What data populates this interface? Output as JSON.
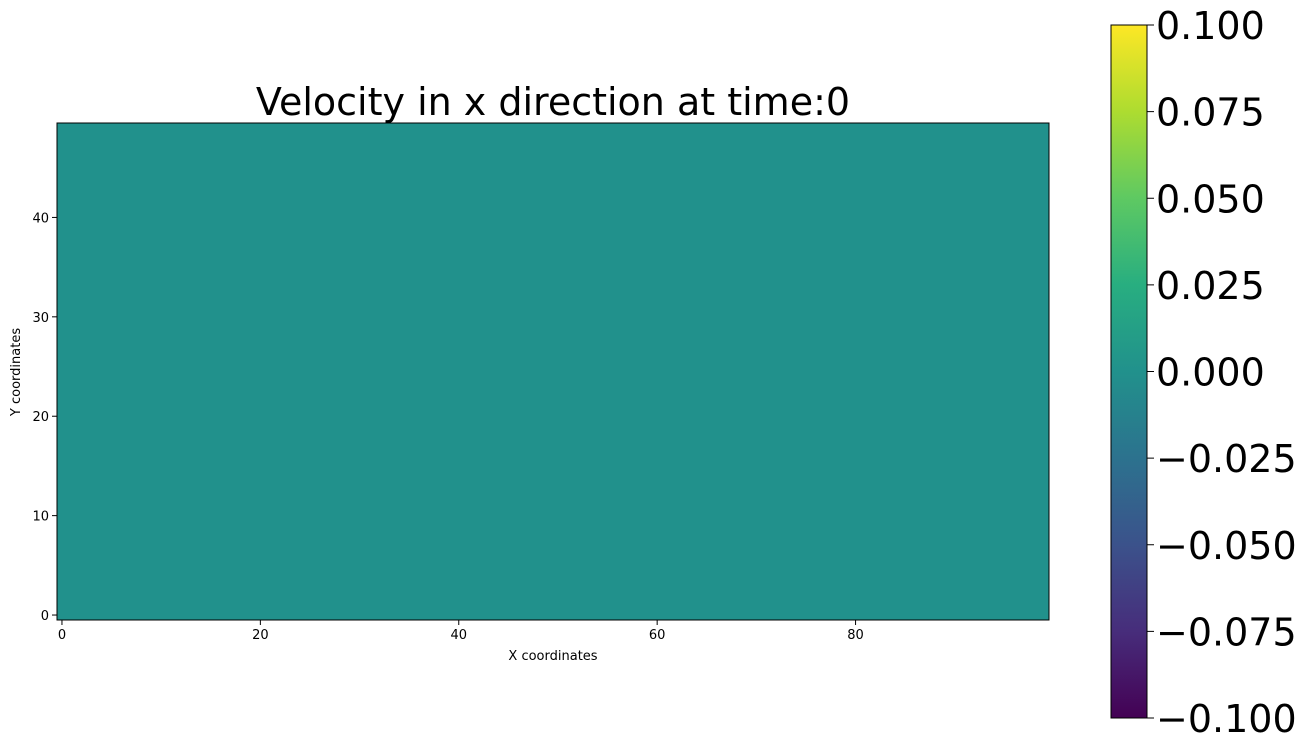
{
  "chart_data": {
    "type": "heatmap",
    "title": "Velocity in x direction at time:0",
    "xlabel": "X coordinates",
    "ylabel": "Y coordinates",
    "xlim": [
      -0.5,
      99.5
    ],
    "ylim": [
      -0.5,
      49.5
    ],
    "xticks": [
      0,
      20,
      40,
      60,
      80
    ],
    "yticks": [
      0,
      10,
      20,
      30,
      40
    ],
    "grid_shape": [
      50,
      100
    ],
    "uniform_value": 0.0,
    "colormap": "viridis",
    "colorbar": {
      "vmin": -0.1,
      "vmax": 0.1,
      "ticks": [
        -0.1,
        -0.075,
        -0.05,
        -0.025,
        0.0,
        0.025,
        0.05,
        0.075,
        0.1
      ],
      "tick_labels": [
        "−0.100",
        "−0.075",
        "−0.050",
        "−0.025",
        "0.000",
        "0.025",
        "0.050",
        "0.075",
        "0.100"
      ]
    },
    "field_color": "#21918c"
  }
}
